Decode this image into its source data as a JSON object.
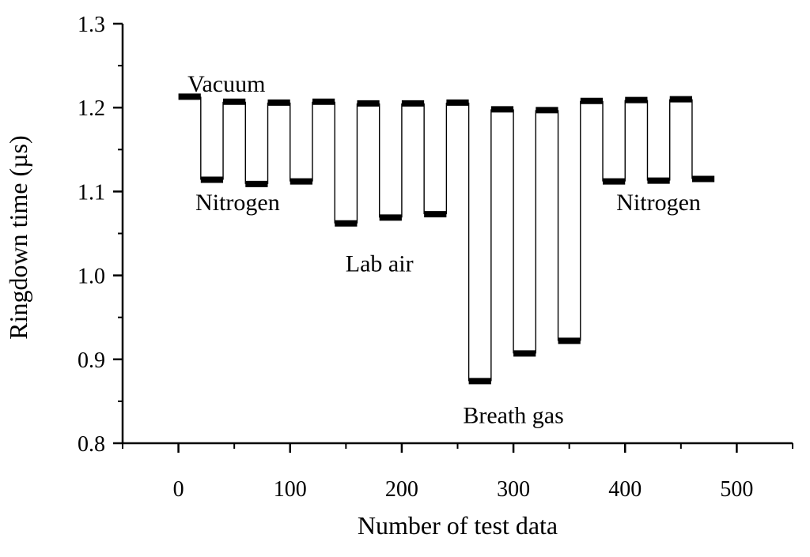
{
  "chart_data": {
    "type": "line",
    "xlabel": "Number of test data",
    "ylabel": "Ringdown time (µs)",
    "xlim": [
      -50,
      550
    ],
    "ylim": [
      0.8,
      1.3
    ],
    "xticks": [
      0,
      100,
      200,
      300,
      400,
      500
    ],
    "yticks": [
      0.8,
      0.9,
      1.0,
      1.1,
      1.2,
      1.3
    ],
    "xtick_labels": [
      "0",
      "100",
      "200",
      "300",
      "400",
      "500"
    ],
    "ytick_labels": [
      "0.8",
      "0.9",
      "1.0",
      "1.1",
      "1.2",
      "1.3"
    ],
    "grid": false,
    "legend": "none",
    "series": [
      {
        "segments": [
          {
            "x": [
              0,
              20
            ],
            "y": [
              1.213,
              1.213
            ]
          },
          {
            "x": [
              20,
              40
            ],
            "y": [
              1.114,
              1.114
            ]
          },
          {
            "x": [
              40,
              60
            ],
            "y": [
              1.207,
              1.207
            ]
          },
          {
            "x": [
              60,
              80
            ],
            "y": [
              1.109,
              1.109
            ]
          },
          {
            "x": [
              80,
              100
            ],
            "y": [
              1.206,
              1.206
            ]
          },
          {
            "x": [
              100,
              120
            ],
            "y": [
              1.112,
              1.112
            ]
          },
          {
            "x": [
              120,
              140
            ],
            "y": [
              1.207,
              1.207
            ]
          },
          {
            "x": [
              140,
              160
            ],
            "y": [
              1.062,
              1.062
            ]
          },
          {
            "x": [
              160,
              180
            ],
            "y": [
              1.205,
              1.205
            ]
          },
          {
            "x": [
              180,
              200
            ],
            "y": [
              1.069,
              1.069
            ]
          },
          {
            "x": [
              200,
              220
            ],
            "y": [
              1.205,
              1.205
            ]
          },
          {
            "x": [
              220,
              240
            ],
            "y": [
              1.073,
              1.073
            ]
          },
          {
            "x": [
              240,
              260
            ],
            "y": [
              1.206,
              1.206
            ]
          },
          {
            "x": [
              260,
              280
            ],
            "y": [
              0.874,
              0.874
            ]
          },
          {
            "x": [
              280,
              300
            ],
            "y": [
              1.198,
              1.198
            ]
          },
          {
            "x": [
              300,
              320
            ],
            "y": [
              0.907,
              0.907
            ]
          },
          {
            "x": [
              320,
              340
            ],
            "y": [
              1.197,
              1.197
            ]
          },
          {
            "x": [
              340,
              360
            ],
            "y": [
              0.922,
              0.922
            ]
          },
          {
            "x": [
              360,
              380
            ],
            "y": [
              1.208,
              1.208
            ]
          },
          {
            "x": [
              380,
              400
            ],
            "y": [
              1.112,
              1.112
            ]
          },
          {
            "x": [
              400,
              420
            ],
            "y": [
              1.209,
              1.209
            ]
          },
          {
            "x": [
              420,
              440
            ],
            "y": [
              1.113,
              1.113
            ]
          },
          {
            "x": [
              440,
              460
            ],
            "y": [
              1.21,
              1.21
            ]
          },
          {
            "x": [
              460,
              480
            ],
            "y": [
              1.115,
              1.115
            ]
          }
        ]
      }
    ],
    "annotations": [
      {
        "text": "Vacuum",
        "x": 43,
        "y": 1.219
      },
      {
        "text": "Nitrogen",
        "x": 53,
        "y": 1.078
      },
      {
        "text": "Lab air",
        "x": 180,
        "y": 1.005
      },
      {
        "text": "Breath gas",
        "x": 300,
        "y": 0.824
      },
      {
        "text": "Nitrogen",
        "x": 430,
        "y": 1.078
      }
    ]
  }
}
